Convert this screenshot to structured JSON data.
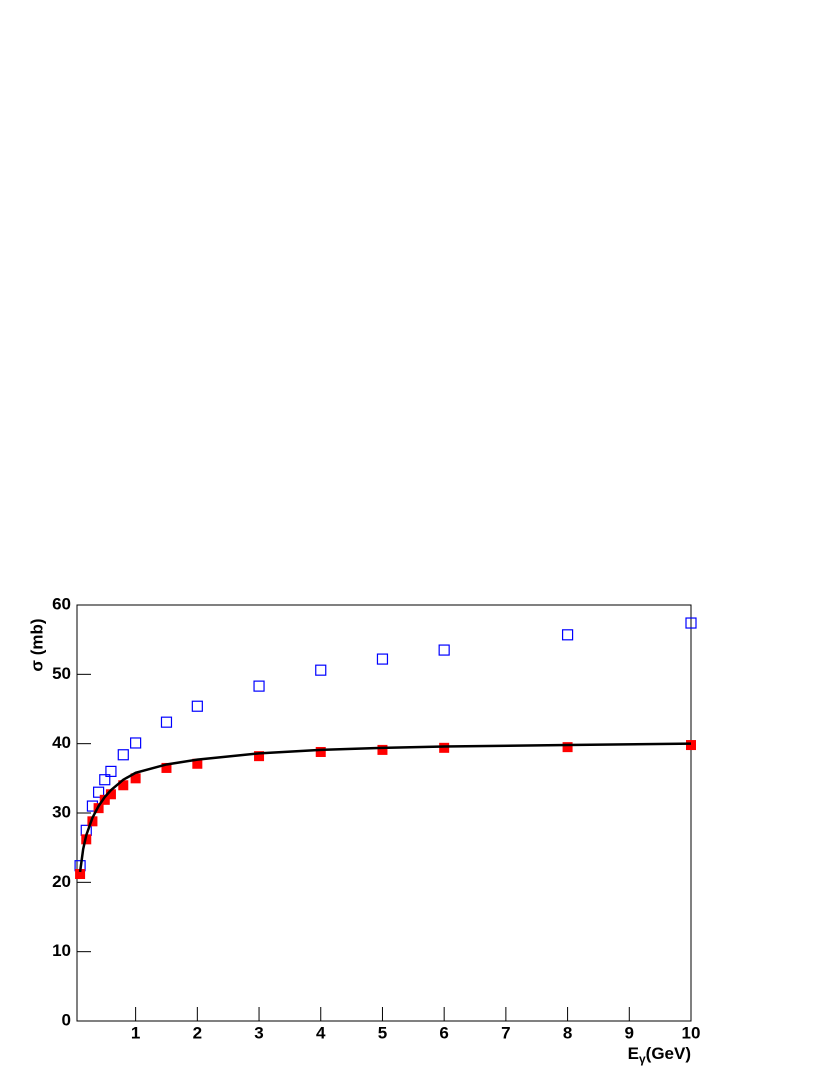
{
  "chart_data": {
    "type": "scatter",
    "xlabel": {
      "base": "E",
      "sub": "γ",
      "rest": "(GeV)"
    },
    "ylabel": "σ (mb)",
    "xlim": [
      0.05,
      10
    ],
    "ylim": [
      0,
      60
    ],
    "xticks": [
      1,
      2,
      3,
      4,
      5,
      6,
      7,
      8,
      9,
      10
    ],
    "yticks": [
      0,
      10,
      20,
      30,
      40,
      50,
      60
    ],
    "series": [
      {
        "color": "#0000ff",
        "marker": "open-square",
        "x": [
          0.1,
          0.2,
          0.3,
          0.4,
          0.5,
          0.6,
          0.8,
          1,
          1.5,
          2,
          3,
          4,
          5,
          6,
          8,
          10
        ],
        "values": [
          22.4,
          27.5,
          31,
          33,
          34.8,
          36,
          38.4,
          40.1,
          43.1,
          45.4,
          48.3,
          50.6,
          52.2,
          53.5,
          55.7,
          57.4
        ]
      },
      {
        "color": "#ff0000",
        "marker": "filled-square",
        "x": [
          0.1,
          0.2,
          0.3,
          0.4,
          0.5,
          0.6,
          0.8,
          1,
          1.5,
          2,
          3,
          4,
          5,
          6,
          8,
          10
        ],
        "values": [
          21.2,
          26.2,
          28.8,
          30.7,
          31.9,
          32.7,
          34,
          35,
          36.5,
          37.1,
          38.2,
          38.8,
          39.1,
          39.4,
          39.5,
          39.8
        ]
      },
      {
        "color": "#000000",
        "marker": "line",
        "x": [
          0.1,
          0.15,
          0.2,
          0.3,
          0.4,
          0.5,
          0.6,
          0.8,
          1,
          1.5,
          2,
          3,
          4,
          5,
          6,
          8,
          10
        ],
        "values": [
          21.5,
          24.8,
          26.8,
          29.3,
          31,
          32.3,
          33.3,
          34.8,
          35.8,
          37,
          37.7,
          38.6,
          39.1,
          39.4,
          39.6,
          39.8,
          40
        ]
      }
    ]
  }
}
